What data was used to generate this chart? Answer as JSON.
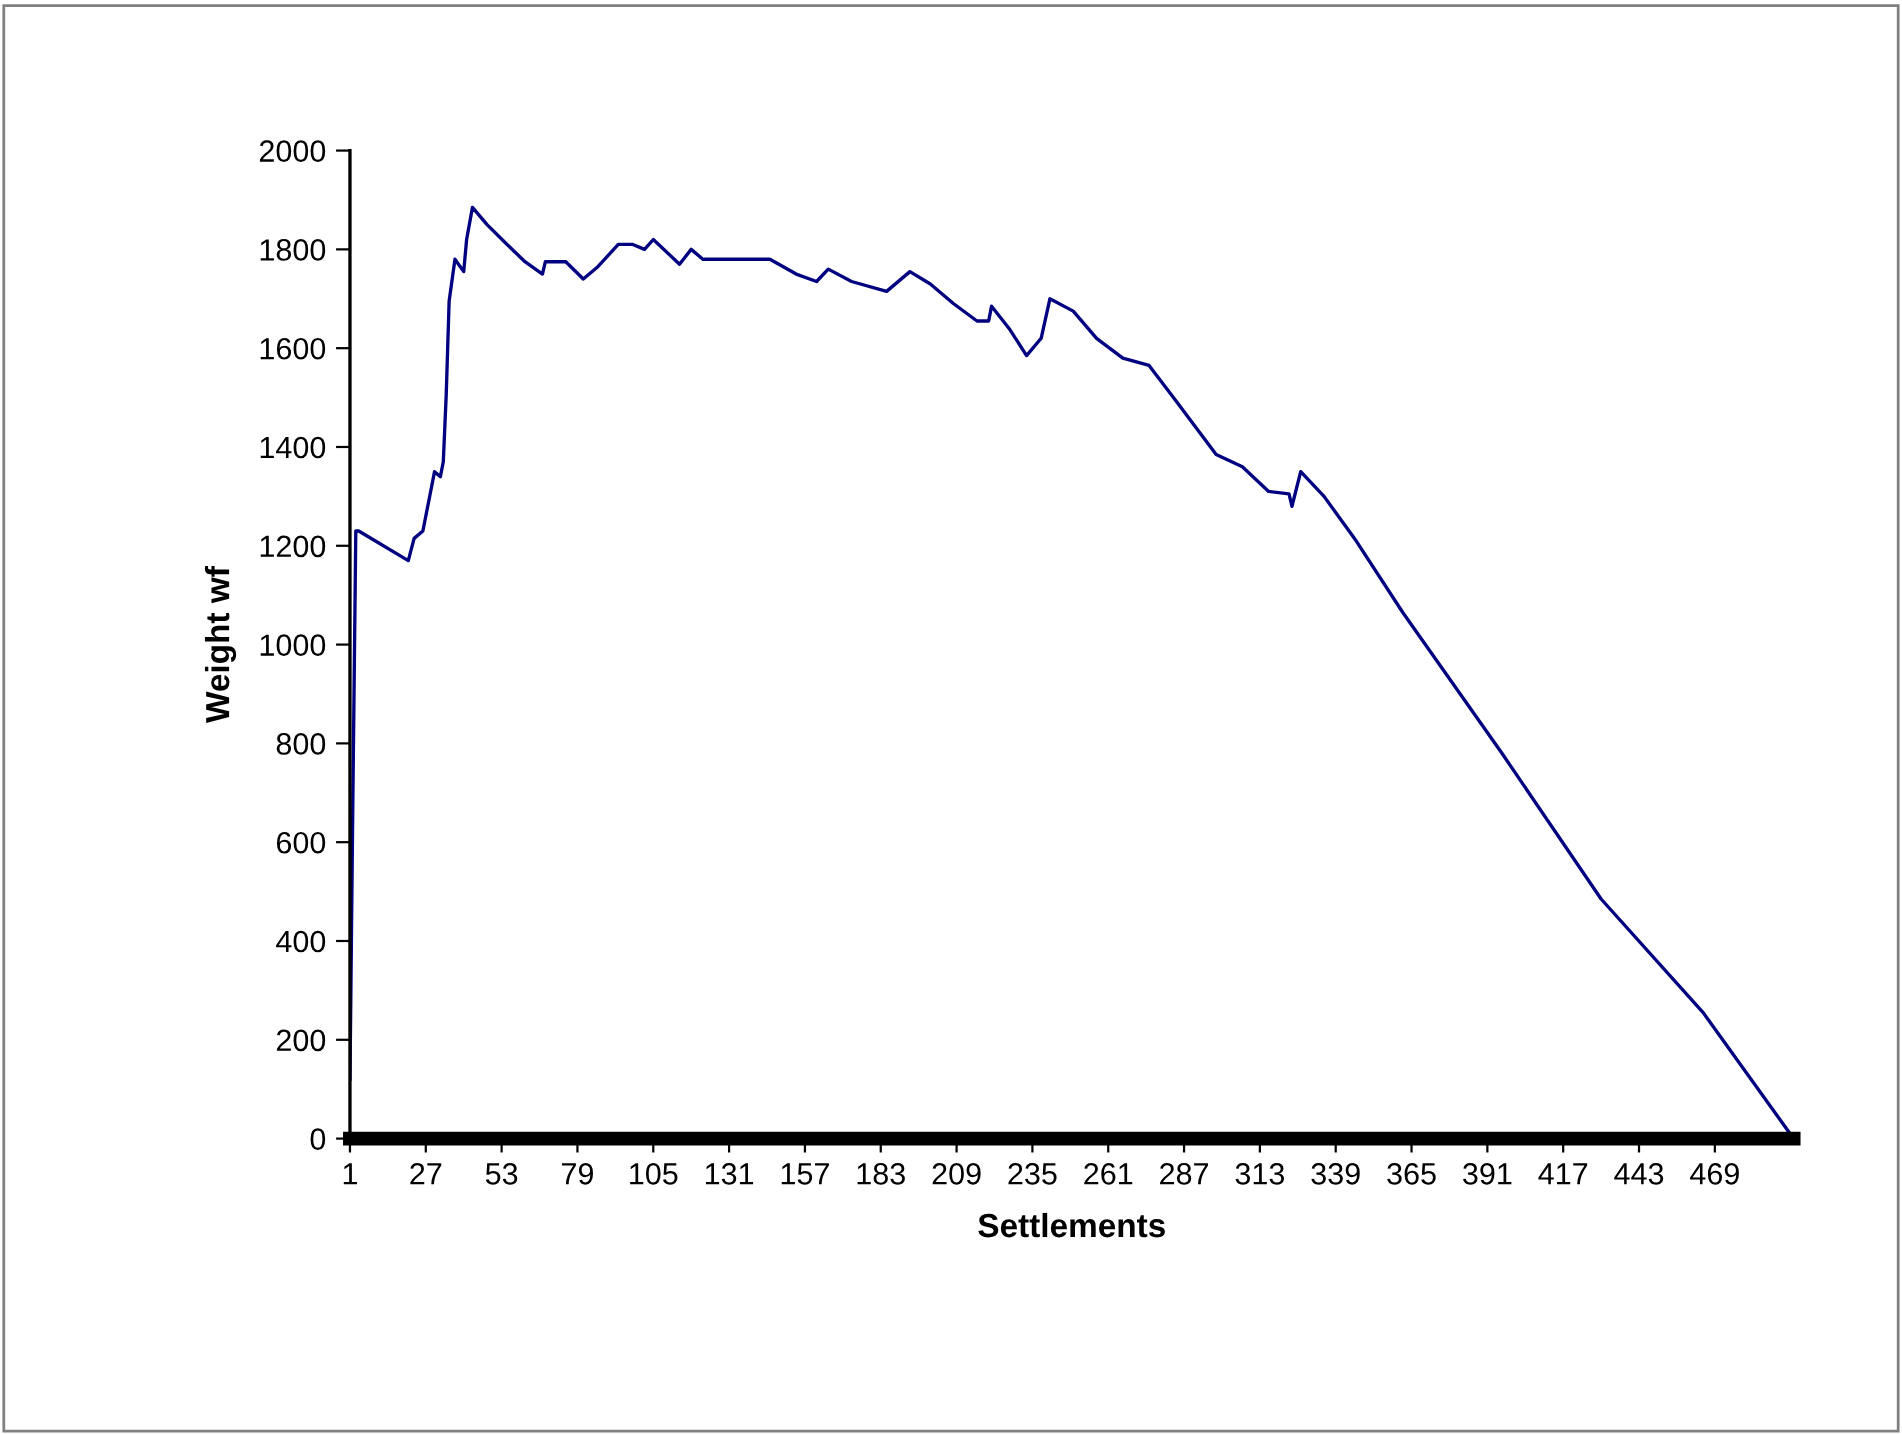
{
  "chart_data": {
    "type": "line",
    "xlabel": "Settlements",
    "ylabel": "Weight wf",
    "xlim": [
      1,
      496
    ],
    "xticks": [
      1,
      27,
      53,
      79,
      105,
      131,
      157,
      183,
      209,
      235,
      261,
      287,
      313,
      339,
      365,
      391,
      417,
      443,
      469
    ],
    "ylim": [
      0,
      2000
    ],
    "yticks": [
      0,
      200,
      400,
      600,
      800,
      1000,
      1200,
      1400,
      1600,
      1800,
      2000
    ],
    "grid": false,
    "legend": false,
    "marker": "none",
    "line_style": "solid",
    "series": [
      {
        "color": "#000080",
        "x": [
          1,
          2,
          3,
          4,
          21,
          23,
          26,
          29,
          30,
          32,
          33,
          34,
          35,
          37,
          40,
          41,
          43,
          48,
          54,
          61,
          67,
          68,
          75,
          81,
          86,
          93,
          98,
          102,
          105,
          114,
          118,
          122,
          134,
          145,
          154,
          161,
          165,
          173,
          185,
          193,
          200,
          208,
          216,
          220,
          221,
          227,
          233,
          238,
          241,
          249,
          257,
          266,
          275,
          284,
          298,
          307,
          316,
          323,
          324,
          327,
          335,
          346,
          362,
          396,
          430,
          465,
          496
        ],
        "values": [
          120,
          690,
          1230,
          1230,
          1170,
          1215,
          1230,
          1320,
          1350,
          1340,
          1370,
          1505,
          1695,
          1780,
          1755,
          1820,
          1885,
          1850,
          1815,
          1775,
          1750,
          1775,
          1775,
          1740,
          1765,
          1810,
          1810,
          1800,
          1820,
          1770,
          1800,
          1780,
          1780,
          1780,
          1750,
          1735,
          1760,
          1735,
          1715,
          1755,
          1730,
          1690,
          1655,
          1655,
          1685,
          1640,
          1585,
          1620,
          1700,
          1675,
          1620,
          1580,
          1565,
          1495,
          1385,
          1360,
          1310,
          1305,
          1280,
          1350,
          1300,
          1210,
          1065,
          780,
          485,
          255,
          0
        ]
      }
    ]
  }
}
